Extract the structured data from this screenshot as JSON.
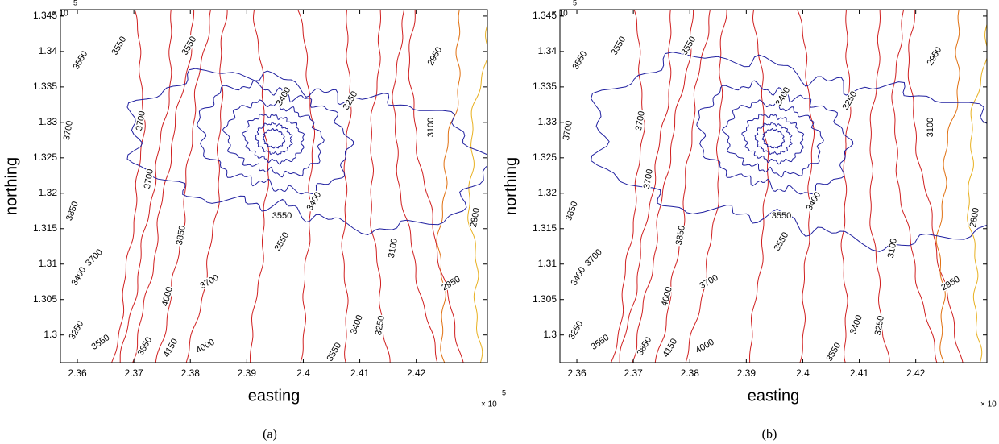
{
  "chart_data": [
    {
      "type": "contour",
      "caption": "(a)",
      "x_label": "easting",
      "y_label": "northing",
      "x_exponent_base": "× 10",
      "x_exponent": "5",
      "y_exponent_base": "× 10",
      "y_exponent": "5",
      "xlim": [
        2.357,
        2.4326
      ],
      "xticks": [
        2.36,
        2.37,
        2.38,
        2.39,
        2.4,
        2.41,
        2.42
      ],
      "ylim": [
        1.2961,
        1.3459
      ],
      "yticks": [
        1.3,
        1.305,
        1.31,
        1.315,
        1.32,
        1.325,
        1.33,
        1.335,
        1.34,
        1.345
      ],
      "contour_labels": [
        3550,
        3550,
        3550,
        3700,
        3700,
        3700,
        3850,
        3850,
        3700,
        3400,
        4000,
        3250,
        3550,
        3850,
        4150,
        4000,
        3700,
        3550,
        3550,
        3400,
        3400,
        3250,
        3100,
        2950,
        2950,
        2800,
        3550,
        3400,
        3250,
        3100
      ]
    },
    {
      "type": "contour",
      "caption": "(b)",
      "x_label": "easting",
      "y_label": "northing",
      "x_exponent_base": "× 10",
      "x_exponent": "5",
      "y_exponent_base": "× 10",
      "y_exponent": "5",
      "xlim": [
        2.357,
        2.4326
      ],
      "xticks": [
        2.36,
        2.37,
        2.38,
        2.39,
        2.4,
        2.41,
        2.42
      ],
      "ylim": [
        1.2961,
        1.3459
      ],
      "yticks": [
        1.3,
        1.305,
        1.31,
        1.315,
        1.32,
        1.325,
        1.33,
        1.335,
        1.34,
        1.345
      ],
      "contour_labels": [
        3550,
        3550,
        3550,
        3700,
        3700,
        3700,
        3850,
        3850,
        3700,
        3400,
        4000,
        3250,
        3550,
        3850,
        4150,
        4000,
        3700,
        3550,
        3550,
        3400,
        3400,
        3250,
        3100,
        2950,
        2950,
        2800,
        3550,
        3400,
        3250,
        3100
      ]
    }
  ]
}
